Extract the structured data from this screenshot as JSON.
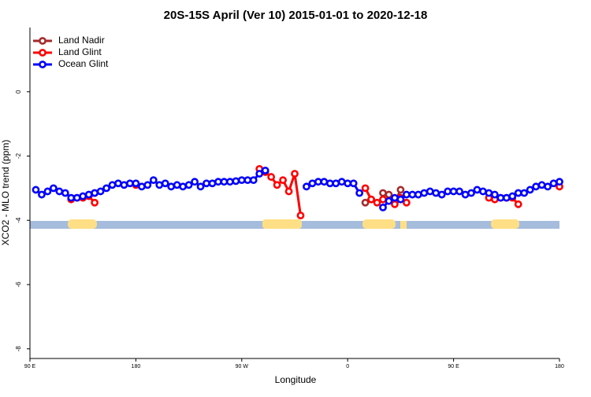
{
  "chart_data": {
    "type": "line",
    "title": "20S-15S April (Ver 10)   2015-01-01 to 2020-12-18",
    "xlabel": "Longitude",
    "ylabel": "XCO2 - MLO trend (ppm)",
    "xlim": [
      90,
      540
    ],
    "ylim": [
      -8.3,
      2
    ],
    "xticks": [
      {
        "value": 90,
        "label": "90 E"
      },
      180,
      {
        "value": 270,
        "label": "90 W"
      },
      {
        "value": 360,
        "label": "0"
      },
      {
        "value": 450,
        "label": "90 E"
      },
      {
        "value": 540,
        "label": "180"
      }
    ],
    "yticks": [
      -8,
      -6,
      -4,
      -2,
      0
    ],
    "legend": "upper left",
    "x": [
      95,
      100,
      105,
      110,
      115,
      120,
      125,
      130,
      135,
      140,
      145,
      150,
      155,
      160,
      165,
      170,
      175,
      180,
      185,
      190,
      195,
      200,
      205,
      210,
      215,
      220,
      225,
      230,
      235,
      240,
      245,
      250,
      255,
      260,
      265,
      270,
      275,
      280,
      285,
      290,
      295,
      300,
      305,
      310,
      315,
      320,
      325,
      330,
      335,
      340,
      345,
      350,
      355,
      360,
      365,
      370,
      375,
      380,
      385,
      390,
      395,
      400,
      405,
      410,
      415,
      420,
      425,
      430,
      435,
      440,
      445,
      450,
      455,
      460,
      465,
      470,
      475,
      480,
      485,
      490,
      495,
      500,
      505,
      510,
      515,
      520,
      525,
      530,
      535,
      540
    ],
    "series": [
      {
        "name": "Land Nadir",
        "color": "#a52a2a",
        "values": [
          null,
          null,
          null,
          null,
          null,
          null,
          null,
          null,
          null,
          null,
          -3.15,
          null,
          null,
          null,
          null,
          null,
          null,
          null,
          null,
          null,
          null,
          null,
          null,
          null,
          null,
          null,
          null,
          null,
          null,
          null,
          null,
          null,
          null,
          null,
          null,
          null,
          null,
          null,
          null,
          null,
          null,
          null,
          null,
          null,
          null,
          null,
          null,
          null,
          null,
          null,
          null,
          null,
          null,
          null,
          null,
          null,
          -3.45,
          -3.35,
          null,
          -3.15,
          -3.2,
          -3.45,
          -3.05,
          null,
          null,
          null,
          null,
          null,
          null,
          null,
          null,
          null,
          null,
          null,
          null,
          null,
          null,
          null,
          null,
          null,
          null,
          null,
          -3.15,
          null,
          null,
          null,
          null,
          null,
          null,
          null
        ]
      },
      {
        "name": "Land Glint",
        "color": "#ff0000",
        "values": [
          null,
          null,
          null,
          null,
          null,
          null,
          -3.35,
          -3.3,
          -3.3,
          -3.25,
          -3.45,
          null,
          null,
          null,
          null,
          null,
          null,
          -2.9,
          null,
          null,
          null,
          null,
          null,
          null,
          null,
          null,
          null,
          null,
          null,
          null,
          null,
          null,
          null,
          null,
          null,
          null,
          null,
          null,
          -2.4,
          -2.5,
          -2.65,
          -2.9,
          -2.75,
          -3.1,
          -2.55,
          -3.85,
          null,
          null,
          null,
          null,
          null,
          null,
          null,
          null,
          null,
          null,
          -3.0,
          -3.35,
          -3.45,
          -3.35,
          -3.4,
          -3.5,
          -3.3,
          -3.45,
          null,
          null,
          null,
          null,
          null,
          null,
          null,
          null,
          null,
          null,
          null,
          null,
          null,
          -3.3,
          -3.35,
          -3.3,
          -3.3,
          -3.3,
          -3.5,
          null,
          null,
          null,
          null,
          null,
          null,
          -2.95
        ]
      },
      {
        "name": "Ocean Glint",
        "color": "#0000ff",
        "values": [
          -3.05,
          -3.2,
          -3.1,
          -3.0,
          -3.1,
          -3.15,
          -3.3,
          -3.3,
          -3.25,
          -3.2,
          -3.15,
          -3.1,
          -3.0,
          -2.9,
          -2.85,
          -2.9,
          -2.85,
          -2.85,
          -2.95,
          -2.9,
          -2.75,
          -2.9,
          -2.85,
          -2.95,
          -2.9,
          -2.95,
          -2.9,
          -2.8,
          -2.95,
          -2.85,
          -2.85,
          -2.8,
          -2.8,
          -2.8,
          -2.78,
          -2.75,
          -2.75,
          -2.75,
          -2.55,
          -2.45,
          null,
          null,
          null,
          null,
          null,
          null,
          -2.95,
          -2.85,
          -2.8,
          -2.8,
          -2.85,
          -2.85,
          -2.8,
          -2.85,
          -2.85,
          -3.15,
          null,
          null,
          null,
          -3.6,
          -3.4,
          -3.3,
          -3.35,
          -3.2,
          -3.2,
          -3.2,
          -3.15,
          -3.1,
          -3.15,
          -3.2,
          -3.1,
          -3.1,
          -3.1,
          -3.2,
          -3.15,
          -3.05,
          -3.1,
          -3.15,
          -3.2,
          -3.3,
          -3.3,
          -3.25,
          -3.15,
          -3.15,
          -3.05,
          -2.95,
          -2.9,
          -2.95,
          -2.85,
          -2.8
        ]
      }
    ]
  }
}
